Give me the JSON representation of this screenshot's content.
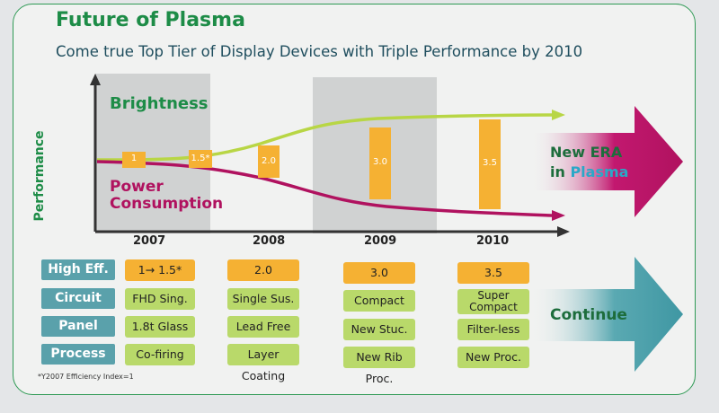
{
  "title": "Future of Plasma",
  "subtitle": "Come true Top Tier of Display Devices with Triple Performance by 2010",
  "chart": {
    "y_axis_label": "Performance",
    "series": [
      {
        "name": "Brightness",
        "color": "#b8d645"
      },
      {
        "name": "Power Consumption",
        "color": "#b0125f"
      }
    ],
    "series_label_1": "Brightness",
    "series_label_2_line1": "Power",
    "series_label_2_line2": "Consumption",
    "years": [
      "2007",
      "2008",
      "2009",
      "2010"
    ],
    "efficiency_markers": [
      "1",
      "1.5*",
      "2.0",
      "3.0",
      "3.5"
    ],
    "colors": {
      "accent_green": "#1d8c47",
      "magenta": "#b0125f",
      "lime": "#b8d645",
      "bar_orange": "#f5b133",
      "teal": "#5aa1ab"
    }
  },
  "right_arrows": {
    "top_line1": "New ERA",
    "top_line2_prefix": "in ",
    "top_line2_highlight": "Plasma",
    "bottom": "Continue"
  },
  "table": {
    "rows": [
      {
        "label": "High Eff.",
        "cells": [
          "1→ 1.5*",
          "2.0",
          "3.0",
          "3.5"
        ]
      },
      {
        "label": "Circuit",
        "cells": [
          "FHD Sing.",
          "Single Sus.",
          "Compact",
          "Super Compact"
        ]
      },
      {
        "label": "Panel",
        "cells": [
          "1.8t Glass",
          "Lead Free",
          "New Stuc.",
          "Filter-less"
        ]
      },
      {
        "label": "Process",
        "cells": [
          "Co-firing",
          "Layer Coating",
          "New Rib Proc.",
          "New Proc."
        ]
      }
    ]
  },
  "footnote": "*Y2007 Efficiency Index=1"
}
